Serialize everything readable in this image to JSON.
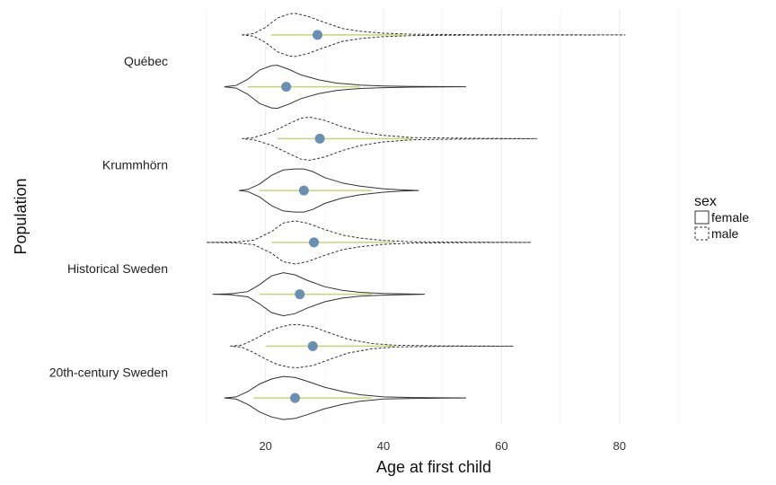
{
  "chart_data": {
    "type": "violin",
    "xlabel": "Age at first child",
    "ylabel": "Population",
    "xlim": [
      10,
      91
    ],
    "xticks": [
      20,
      40,
      60,
      80
    ],
    "grid": true,
    "legend": {
      "title": "sex",
      "position": "right",
      "entries": [
        {
          "label": "female",
          "linetype": "solid"
        },
        {
          "label": "male",
          "linetype": "dashed"
        }
      ]
    },
    "colors": {
      "point": "#6b8fb0",
      "iqr_line": "#c9d27a",
      "outline": "#333333",
      "grid": "#ececec"
    },
    "categories": [
      "Québec",
      "Krummhörn",
      "Historical Sweden",
      "20th-century Sweden"
    ],
    "series": [
      {
        "category": "Québec",
        "sex": "male",
        "range": [
          16,
          81
        ],
        "mode": 25,
        "median": 28.8,
        "iqr": [
          21,
          44
        ],
        "profile": [
          [
            16,
            0
          ],
          [
            18,
            0.06
          ],
          [
            20,
            0.35
          ],
          [
            22,
            0.78
          ],
          [
            24,
            0.98
          ],
          [
            25,
            1.0
          ],
          [
            27,
            0.88
          ],
          [
            30,
            0.58
          ],
          [
            33,
            0.3
          ],
          [
            36,
            0.17
          ],
          [
            40,
            0.08
          ],
          [
            45,
            0.03
          ],
          [
            55,
            0.01
          ],
          [
            81,
            0
          ]
        ]
      },
      {
        "category": "Québec",
        "sex": "female",
        "range": [
          13,
          54
        ],
        "mode": 21.5,
        "median": 23.5,
        "iqr": [
          17,
          36
        ],
        "profile": [
          [
            13,
            0
          ],
          [
            15,
            0.06
          ],
          [
            17,
            0.35
          ],
          [
            19,
            0.78
          ],
          [
            21,
            0.98
          ],
          [
            22,
            1.0
          ],
          [
            24,
            0.8
          ],
          [
            26,
            0.55
          ],
          [
            29,
            0.32
          ],
          [
            32,
            0.17
          ],
          [
            36,
            0.08
          ],
          [
            40,
            0.04
          ],
          [
            45,
            0.015
          ],
          [
            54,
            0
          ]
        ]
      },
      {
        "category": "Krummhörn",
        "sex": "male",
        "range": [
          16,
          66
        ],
        "mode": 27,
        "median": 29.2,
        "iqr": [
          22,
          45
        ],
        "profile": [
          [
            16,
            0
          ],
          [
            18,
            0.05
          ],
          [
            21,
            0.3
          ],
          [
            24,
            0.7
          ],
          [
            26,
            0.95
          ],
          [
            27.5,
            1.0
          ],
          [
            30,
            0.85
          ],
          [
            33,
            0.55
          ],
          [
            36,
            0.32
          ],
          [
            40,
            0.15
          ],
          [
            45,
            0.05
          ],
          [
            55,
            0.015
          ],
          [
            66,
            0
          ]
        ]
      },
      {
        "category": "Krummhörn",
        "sex": "female",
        "range": [
          15.5,
          46
        ],
        "mode": 25.5,
        "median": 26.5,
        "iqr": [
          19,
          38
        ],
        "profile": [
          [
            15.5,
            0
          ],
          [
            17,
            0.05
          ],
          [
            19,
            0.3
          ],
          [
            21,
            0.7
          ],
          [
            23,
            0.95
          ],
          [
            25,
            1.0
          ],
          [
            26.5,
            1.0
          ],
          [
            28,
            0.88
          ],
          [
            30,
            0.6
          ],
          [
            33,
            0.35
          ],
          [
            36,
            0.2
          ],
          [
            40,
            0.08
          ],
          [
            43,
            0.03
          ],
          [
            46,
            0
          ]
        ]
      },
      {
        "category": "Historical Sweden",
        "sex": "male",
        "range": [
          10,
          65
        ],
        "mode": 25,
        "median": 28.2,
        "iqr": [
          21,
          42
        ],
        "profile": [
          [
            10,
            0
          ],
          [
            15,
            0.02
          ],
          [
            18,
            0.1
          ],
          [
            21,
            0.5
          ],
          [
            23,
            0.9
          ],
          [
            25,
            1.0
          ],
          [
            27,
            0.9
          ],
          [
            30,
            0.6
          ],
          [
            33,
            0.34
          ],
          [
            36,
            0.2
          ],
          [
            40,
            0.09
          ],
          [
            45,
            0.03
          ],
          [
            55,
            0.01
          ],
          [
            65,
            0
          ]
        ]
      },
      {
        "category": "Historical Sweden",
        "sex": "female",
        "range": [
          11,
          47
        ],
        "mode": 23,
        "median": 25.8,
        "iqr": [
          19,
          38
        ],
        "profile": [
          [
            11,
            0
          ],
          [
            14,
            0.02
          ],
          [
            17,
            0.12
          ],
          [
            19,
            0.45
          ],
          [
            21,
            0.85
          ],
          [
            23,
            1.0
          ],
          [
            25,
            0.9
          ],
          [
            27,
            0.65
          ],
          [
            30,
            0.35
          ],
          [
            33,
            0.18
          ],
          [
            36,
            0.09
          ],
          [
            40,
            0.04
          ],
          [
            47,
            0
          ]
        ]
      },
      {
        "category": "20th-century Sweden",
        "sex": "male",
        "range": [
          14,
          62
        ],
        "mode": 25.5,
        "median": 28,
        "iqr": [
          20,
          42
        ],
        "profile": [
          [
            14,
            0
          ],
          [
            16,
            0.05
          ],
          [
            18,
            0.3
          ],
          [
            20,
            0.6
          ],
          [
            22,
            0.85
          ],
          [
            24,
            0.98
          ],
          [
            25.5,
            1.0
          ],
          [
            28,
            0.9
          ],
          [
            31,
            0.6
          ],
          [
            34,
            0.32
          ],
          [
            38,
            0.12
          ],
          [
            42,
            0.04
          ],
          [
            50,
            0.01
          ],
          [
            62,
            0
          ]
        ]
      },
      {
        "category": "20th-century Sweden",
        "sex": "female",
        "range": [
          13,
          54
        ],
        "mode": 23.5,
        "median": 25,
        "iqr": [
          18,
          38
        ],
        "profile": [
          [
            13,
            0
          ],
          [
            15,
            0.05
          ],
          [
            17,
            0.3
          ],
          [
            19,
            0.65
          ],
          [
            21,
            0.88
          ],
          [
            23,
            1.0
          ],
          [
            25,
            0.95
          ],
          [
            27,
            0.78
          ],
          [
            30,
            0.5
          ],
          [
            33,
            0.3
          ],
          [
            36,
            0.15
          ],
          [
            40,
            0.05
          ],
          [
            45,
            0.02
          ],
          [
            54,
            0
          ]
        ]
      }
    ]
  }
}
